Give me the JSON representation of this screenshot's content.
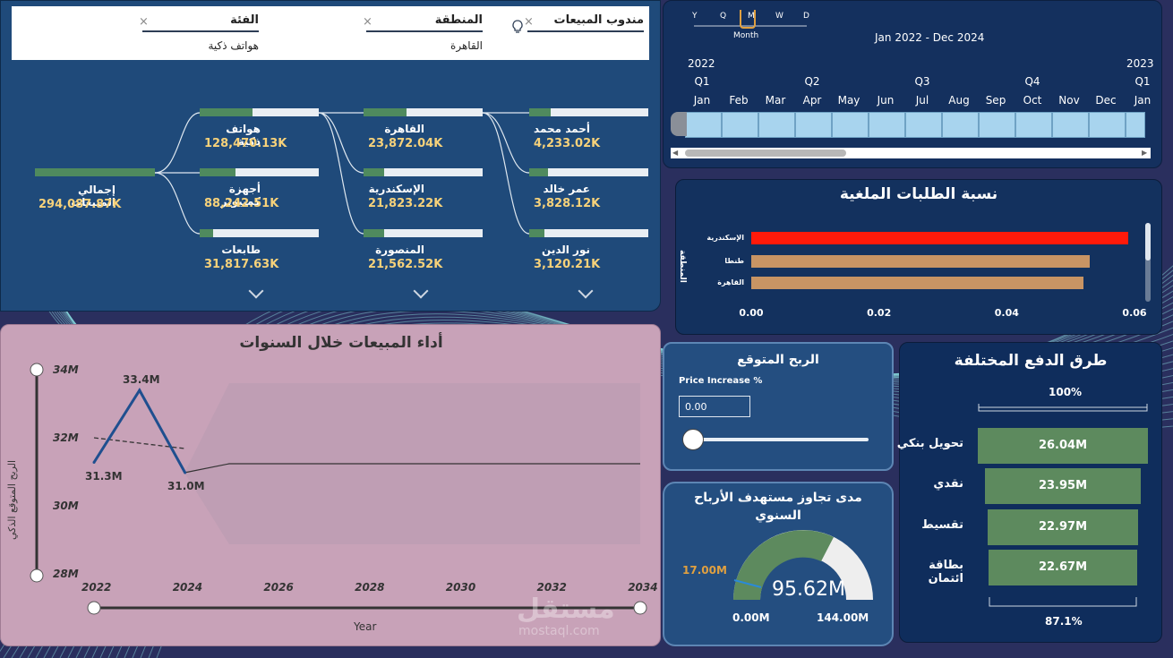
{
  "slicers": [
    {
      "title": "الفئة",
      "value": "هواتف ذكية"
    },
    {
      "title": "المنطقة",
      "value": "القاهرة"
    },
    {
      "title": "مندوب المبيعات",
      "value": ""
    }
  ],
  "decomp": {
    "root": {
      "label": "إجمالي المبيعات",
      "value": "294,087.87K",
      "fill": 1.0
    },
    "level1": [
      {
        "label": "هواتف ذكية",
        "value": "128,470.13K",
        "fill": 0.44
      },
      {
        "label": "أجهزة كمبيوتر",
        "value": "88,242.51K",
        "fill": 0.3
      },
      {
        "label": "طابعات",
        "value": "31,817.63K",
        "fill": 0.11
      }
    ],
    "level2": [
      {
        "label": "القاهرة",
        "value": "23,872.04K",
        "fill": 0.36
      },
      {
        "label": "الإسكندرية",
        "value": "21,823.22K",
        "fill": 0.17
      },
      {
        "label": "المنصورة",
        "value": "21,562.52K",
        "fill": 0.17
      }
    ],
    "level3": [
      {
        "label": "أحمد محمد",
        "value": "4,233.02K",
        "fill": 0.18
      },
      {
        "label": "عمر خالد",
        "value": "3,828.12K",
        "fill": 0.16
      },
      {
        "label": "نور الدين",
        "value": "3,120.21K",
        "fill": 0.13
      }
    ]
  },
  "timeline": {
    "granularity": [
      "Y",
      "Q",
      "M",
      "W",
      "D"
    ],
    "selected": "M",
    "granularity_label": "Month",
    "range": "Jan 2022 - Dec 2024",
    "year_start": "2022",
    "year_next": "2023",
    "quarters": [
      "Q1",
      "Q2",
      "Q3",
      "Q4",
      "Q1"
    ],
    "months": [
      "Jan",
      "Feb",
      "Mar",
      "Apr",
      "May",
      "Jun",
      "Jul",
      "Aug",
      "Sep",
      "Oct",
      "Nov",
      "Dec",
      "Jan"
    ]
  },
  "cancel_chart": {
    "title": "نسبة الطلبات الملغية",
    "axis_label": "المنطقة",
    "ticks": [
      "0.00",
      "0.02",
      "0.04",
      "0.06"
    ]
  },
  "line_chart": {
    "title": "أداء المبيعات خلال السنوات",
    "ylabel": "الربح المتوقع الذكي",
    "xlabel": "Year",
    "yticks": [
      "34M",
      "32M",
      "30M",
      "28M"
    ],
    "xticks": [
      "2022",
      "2024",
      "2026",
      "2028",
      "2030",
      "2032",
      "2034"
    ],
    "labels": [
      "33.4M",
      "31.3M",
      "31.0M"
    ]
  },
  "profit": {
    "title": "الربح المتوقع",
    "param_label": "Price Increase %",
    "param_value": "0.00"
  },
  "gauge": {
    "title": "مدى تجاوز مستهدف الأرباح السنوي",
    "value": "95.62M",
    "target": "17.00M",
    "min": "0.00M",
    "max": "144.00M"
  },
  "payments": {
    "title": "طرق الدفع المختلفة",
    "top_pct": "100%",
    "bottom_pct": "87.1%"
  },
  "watermark": "mostaql.com",
  "colors": {
    "cancel_highlight": "#ff1a0a",
    "cancel_bar": "#c89464",
    "green": "#5d8a5e",
    "gold": "#f7d27a"
  },
  "chart_data": [
    {
      "type": "bar",
      "title": "نسبة الطلبات الملغية",
      "categories": [
        "الإسكندرية",
        "طنطا",
        "القاهرة"
      ],
      "values": [
        0.059,
        0.053,
        0.052
      ],
      "xlim": [
        0,
        0.06
      ]
    },
    {
      "type": "line",
      "title": "أداء المبيعات خلال السنوات",
      "xlabel": "Year",
      "ylabel": "الربح المتوقع الذكي",
      "x": [
        2022,
        2023,
        2024
      ],
      "values": [
        31.3,
        33.4,
        31.0
      ],
      "ylim": [
        28,
        34
      ],
      "xlim": [
        2022,
        2034
      ]
    },
    {
      "type": "bar",
      "title": "طرق الدفع المختلفة",
      "categories": [
        "تحويل بنكي",
        "نقدي",
        "تقسيط",
        "بطاقة ائتمان"
      ],
      "values": [
        26.04,
        23.95,
        22.97,
        22.67
      ],
      "labels": [
        "26.04M",
        "23.95M",
        "22.97M",
        "22.67M"
      ]
    }
  ]
}
